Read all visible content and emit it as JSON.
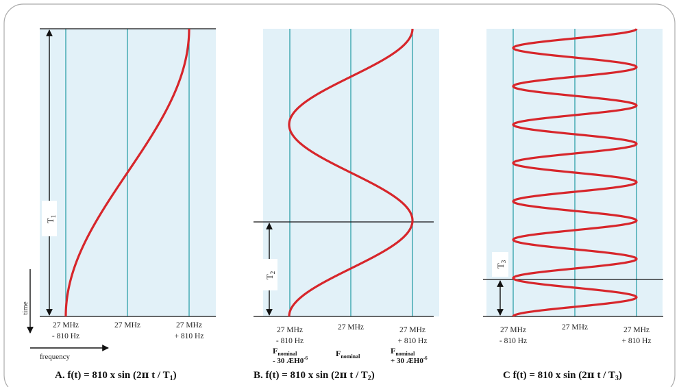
{
  "panels": [
    {
      "id": "A",
      "caption_prefix": "A.  f(t) = 810  x  sin (2",
      "caption_pi": "π",
      "caption_mid": " t / T",
      "caption_sub": "1",
      "caption_end": ")",
      "period_label": "T",
      "period_sub": "1",
      "cycles": 0.5,
      "period_fraction": 1.0,
      "ticks": [
        {
          "line1": "27 MHz",
          "line2": "- 810 Hz"
        },
        {
          "line1": "27 MHz",
          "line2": ""
        },
        {
          "line1": "27 MHz",
          "line2": "+ 810 Hz"
        }
      ]
    },
    {
      "id": "B",
      "caption_prefix": "B.  f(t) = 810  x  sin (2",
      "caption_pi": "π",
      "caption_mid": " t / T",
      "caption_sub": "2",
      "caption_end": ")",
      "period_label": "T",
      "period_sub": "2",
      "cycles": 1.5,
      "period_fraction": 0.3333,
      "ticks": [
        {
          "line1": "27 MHz",
          "line2": "- 810 Hz"
        },
        {
          "line1": "27 MHz",
          "line2": ""
        },
        {
          "line1": "27 MHz",
          "line2": "+ 810 Hz"
        }
      ],
      "fnominal": [
        {
          "main": "F",
          "sub": "nominal",
          "line2": "- 30 ÆH0",
          "sup": "-6"
        },
        {
          "main": "F",
          "sub": "nominal",
          "line2": "",
          "sup": ""
        },
        {
          "main": "F",
          "sub": "nominal",
          "line2": "+ 30 ÆH0",
          "sup": "-6"
        }
      ]
    },
    {
      "id": "C",
      "caption_prefix": "C  f(t) = 810  x  sin (2",
      "caption_pi": "π",
      "caption_mid": " t / T",
      "caption_sub": "3",
      "caption_end": ")",
      "period_label": "T",
      "period_sub": "3",
      "cycles": 7.5,
      "period_fraction": 0.1333,
      "ticks": [
        {
          "line1": "27 MHz",
          "line2": "- 810 Hz"
        },
        {
          "line1": "27 MHz",
          "line2": ""
        },
        {
          "line1": "27 MHz",
          "line2": "+ 810 Hz"
        }
      ]
    }
  ],
  "axes": {
    "time_label": "time",
    "frequency_label": "frequency"
  },
  "colors": {
    "background": "#e2f1f8",
    "curve": "#d7262b",
    "gridline": "#1f9aa3",
    "line": "#111111",
    "frame": "#aaaaaa"
  }
}
